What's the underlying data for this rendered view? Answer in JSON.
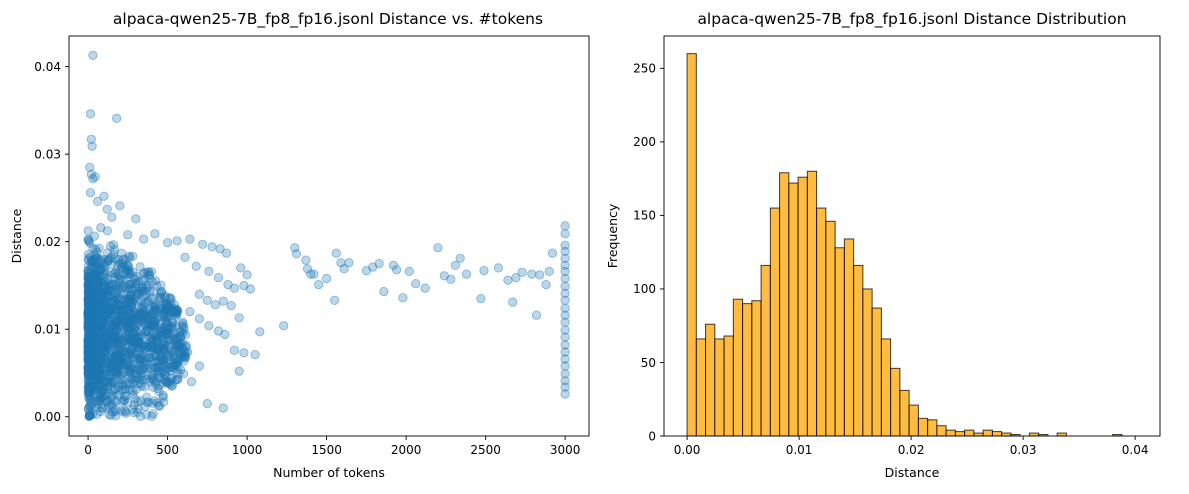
{
  "chart_data": [
    {
      "type": "scatter",
      "title": "alpaca-qwen25-7B_fp8_fp16.jsonl Distance vs. #tokens",
      "xlabel": "Number of tokens",
      "ylabel": "Distance",
      "xlim": [
        -120,
        3150
      ],
      "ylim": [
        -0.0022,
        0.0435
      ],
      "xticks": [
        0,
        500,
        1000,
        1500,
        2000,
        2500,
        3000
      ],
      "xtick_labels": [
        "0",
        "500",
        "1000",
        "1500",
        "2000",
        "2500",
        "3000"
      ],
      "yticks": [
        0.0,
        0.01,
        0.02,
        0.03,
        0.04
      ],
      "ytick_labels": [
        "0.00",
        "0.01",
        "0.02",
        "0.03",
        "0.04"
      ],
      "grid": false,
      "marker_color": "#1f77b4",
      "marker_alpha": 0.3,
      "points": [
        [
          30,
          0.0413
        ],
        [
          15,
          0.0346
        ],
        [
          20,
          0.0317
        ],
        [
          25,
          0.0309
        ],
        [
          180,
          0.0341
        ],
        [
          10,
          0.0285
        ],
        [
          20,
          0.0277
        ],
        [
          30,
          0.0272
        ],
        [
          45,
          0.0274
        ],
        [
          15,
          0.0256
        ],
        [
          60,
          0.0246
        ],
        [
          100,
          0.0252
        ],
        [
          120,
          0.0237
        ],
        [
          200,
          0.0241
        ],
        [
          150,
          0.0228
        ],
        [
          300,
          0.0226
        ],
        [
          80,
          0.0216
        ],
        [
          250,
          0.0208
        ],
        [
          350,
          0.0203
        ],
        [
          420,
          0.0209
        ],
        [
          500,
          0.0199
        ],
        [
          560,
          0.0201
        ],
        [
          640,
          0.0203
        ],
        [
          720,
          0.0197
        ],
        [
          780,
          0.0194
        ],
        [
          830,
          0.0192
        ],
        [
          870,
          0.0187
        ],
        [
          960,
          0.017
        ],
        [
          1000,
          0.0162
        ],
        [
          610,
          0.0182
        ],
        [
          680,
          0.0172
        ],
        [
          760,
          0.0166
        ],
        [
          820,
          0.0159
        ],
        [
          880,
          0.0151
        ],
        [
          920,
          0.0147
        ],
        [
          980,
          0.015
        ],
        [
          1020,
          0.0146
        ],
        [
          700,
          0.014
        ],
        [
          750,
          0.0133
        ],
        [
          800,
          0.0128
        ],
        [
          850,
          0.0132
        ],
        [
          900,
          0.0127
        ],
        [
          950,
          0.0113
        ],
        [
          1080,
          0.0097
        ],
        [
          640,
          0.012
        ],
        [
          700,
          0.0112
        ],
        [
          760,
          0.0104
        ],
        [
          820,
          0.0098
        ],
        [
          860,
          0.0094
        ],
        [
          920,
          0.0076
        ],
        [
          980,
          0.0073
        ],
        [
          1050,
          0.0071
        ],
        [
          950,
          0.0052
        ],
        [
          700,
          0.0058
        ],
        [
          750,
          0.0015
        ],
        [
          850,
          0.001
        ],
        [
          600,
          0.0049
        ],
        [
          650,
          0.004
        ],
        [
          450,
          0.0012
        ],
        [
          250,
          0.0016
        ],
        [
          1230,
          0.0104
        ],
        [
          1300,
          0.0193
        ],
        [
          1310,
          0.0186
        ],
        [
          1370,
          0.0179
        ],
        [
          1380,
          0.0169
        ],
        [
          1400,
          0.0163
        ],
        [
          1450,
          0.0151
        ],
        [
          1420,
          0.0163
        ],
        [
          1500,
          0.0158
        ],
        [
          1550,
          0.0133
        ],
        [
          1560,
          0.0187
        ],
        [
          1590,
          0.0176
        ],
        [
          1610,
          0.0169
        ],
        [
          1640,
          0.0176
        ],
        [
          1750,
          0.0167
        ],
        [
          1790,
          0.0171
        ],
        [
          1830,
          0.0175
        ],
        [
          1860,
          0.0143
        ],
        [
          1920,
          0.0173
        ],
        [
          1940,
          0.0168
        ],
        [
          1980,
          0.0136
        ],
        [
          2020,
          0.0166
        ],
        [
          2060,
          0.0152
        ],
        [
          2120,
          0.0147
        ],
        [
          2200,
          0.0193
        ],
        [
          2240,
          0.0161
        ],
        [
          2280,
          0.0157
        ],
        [
          2310,
          0.0173
        ],
        [
          2340,
          0.0181
        ],
        [
          2380,
          0.0163
        ],
        [
          2470,
          0.0135
        ],
        [
          2490,
          0.0167
        ],
        [
          2580,
          0.017
        ],
        [
          2640,
          0.0156
        ],
        [
          2670,
          0.0131
        ],
        [
          2690,
          0.0159
        ],
        [
          2730,
          0.0165
        ],
        [
          2790,
          0.0163
        ],
        [
          2820,
          0.0116
        ],
        [
          2840,
          0.0162
        ],
        [
          2880,
          0.0151
        ],
        [
          2900,
          0.0166
        ],
        [
          2920,
          0.0187
        ],
        [
          3000,
          0.0218
        ],
        [
          3000,
          0.0209
        ],
        [
          3000,
          0.0196
        ],
        [
          3000,
          0.0189
        ],
        [
          3000,
          0.0181
        ],
        [
          3000,
          0.0173
        ],
        [
          3000,
          0.0166
        ],
        [
          3000,
          0.0158
        ],
        [
          3000,
          0.0149
        ],
        [
          3000,
          0.0141
        ],
        [
          3000,
          0.0133
        ],
        [
          3000,
          0.0124
        ],
        [
          3000,
          0.0116
        ],
        [
          3000,
          0.0108
        ],
        [
          3000,
          0.0099
        ],
        [
          3000,
          0.0091
        ],
        [
          3000,
          0.0082
        ],
        [
          3000,
          0.0074
        ],
        [
          3000,
          0.0066
        ],
        [
          3000,
          0.0058
        ],
        [
          3000,
          0.0049
        ],
        [
          3000,
          0.0041
        ],
        [
          3000,
          0.0034
        ],
        [
          3000,
          0.0026
        ]
      ],
      "dense_cluster": {
        "description_count": 1700,
        "x_max_by_y": [
          [
            0.0,
            420
          ],
          [
            0.004,
            560
          ],
          [
            0.008,
            640
          ],
          [
            0.012,
            580
          ],
          [
            0.016,
            430
          ],
          [
            0.02,
            220
          ],
          [
            0.024,
            90
          ],
          [
            0.03,
            30
          ]
        ],
        "y_range": [
          0.0,
          0.0215
        ]
      }
    },
    {
      "type": "bar",
      "subtype": "histogram",
      "title": "alpaca-qwen25-7B_fp8_fp16.jsonl Distance Distribution",
      "xlabel": "Distance",
      "ylabel": "Frequency",
      "xlim": [
        -0.00206,
        0.04222
      ],
      "ylim": [
        0,
        272
      ],
      "xticks": [
        0.0,
        0.01,
        0.02,
        0.03,
        0.04
      ],
      "xtick_labels": [
        "0.00",
        "0.01",
        "0.02",
        "0.03",
        "0.04"
      ],
      "yticks": [
        0,
        50,
        100,
        150,
        200,
        250
      ],
      "ytick_labels": [
        "0",
        "50",
        "100",
        "150",
        "200",
        "250"
      ],
      "bin_start": 0.0,
      "bin_width": 0.000826,
      "values": [
        260,
        66,
        76,
        66,
        68,
        93,
        90,
        92,
        116,
        155,
        179,
        172,
        176,
        180,
        155,
        146,
        128,
        134,
        116,
        100,
        87,
        66,
        46,
        31,
        21,
        12,
        11,
        7,
        4,
        3,
        4,
        2,
        4,
        3,
        2,
        1,
        0,
        2,
        1,
        0,
        2,
        0,
        0,
        0,
        0,
        0,
        1,
        0,
        0,
        0
      ],
      "grid": false,
      "bar_color": "#ffa500",
      "bar_alpha": 0.75,
      "edge_color": "#000000"
    }
  ]
}
